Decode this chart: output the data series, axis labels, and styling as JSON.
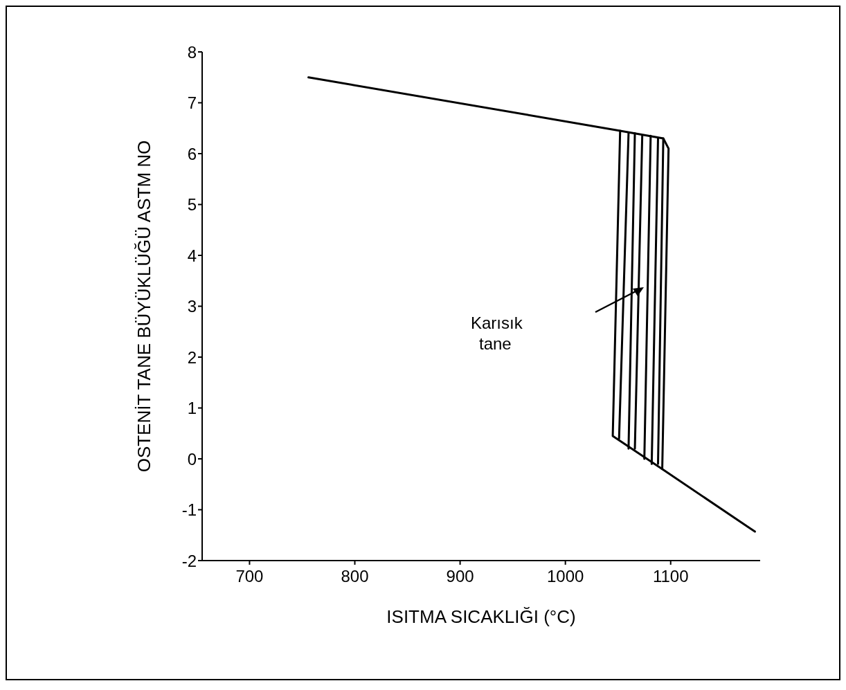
{
  "chart_data": {
    "type": "line",
    "xlabel": "ISITMA SICAKLIĞI (°C)",
    "ylabel": "OSTENİT TANE BÜYÜKLÜĞÜ ASTM NO",
    "xlim": [
      655,
      1185
    ],
    "ylim": [
      -2,
      8
    ],
    "xticks": [
      700,
      800,
      900,
      1000,
      1100
    ],
    "yticks": [
      -2,
      -1,
      0,
      1,
      2,
      3,
      4,
      5,
      6,
      7,
      8
    ],
    "marker": "none",
    "line_style": "solid",
    "annotations": [
      "Karısık tane"
    ],
    "series": [
      {
        "color": "#000000",
        "x": [
          756,
          1052,
          1093,
          1098,
          1092,
          1180
        ],
        "values": [
          7.5,
          6.45,
          6.3,
          6.1,
          -0.2,
          -1.43
        ]
      },
      {
        "color": "#000000",
        "x": [
          1052,
          1045,
          1092
        ],
        "values": [
          6.45,
          0.45,
          -0.2
        ]
      },
      {
        "color": "#000000",
        "x": [
          1060,
          1051
        ],
        "values": [
          6.4,
          0.4
        ]
      },
      {
        "color": "#000000",
        "x": [
          1066,
          1060
        ],
        "values": [
          6.4,
          0.2
        ]
      },
      {
        "color": "#000000",
        "x": [
          1073,
          1066
        ],
        "values": [
          6.35,
          0.2
        ]
      },
      {
        "color": "#000000",
        "x": [
          1081,
          1075
        ],
        "values": [
          6.35,
          0.0
        ]
      },
      {
        "color": "#000000",
        "x": [
          1088,
          1082
        ],
        "values": [
          6.3,
          -0.1
        ]
      },
      {
        "color": "#000000",
        "x": [
          1093,
          1088
        ],
        "values": [
          6.3,
          -0.1
        ]
      }
    ]
  }
}
